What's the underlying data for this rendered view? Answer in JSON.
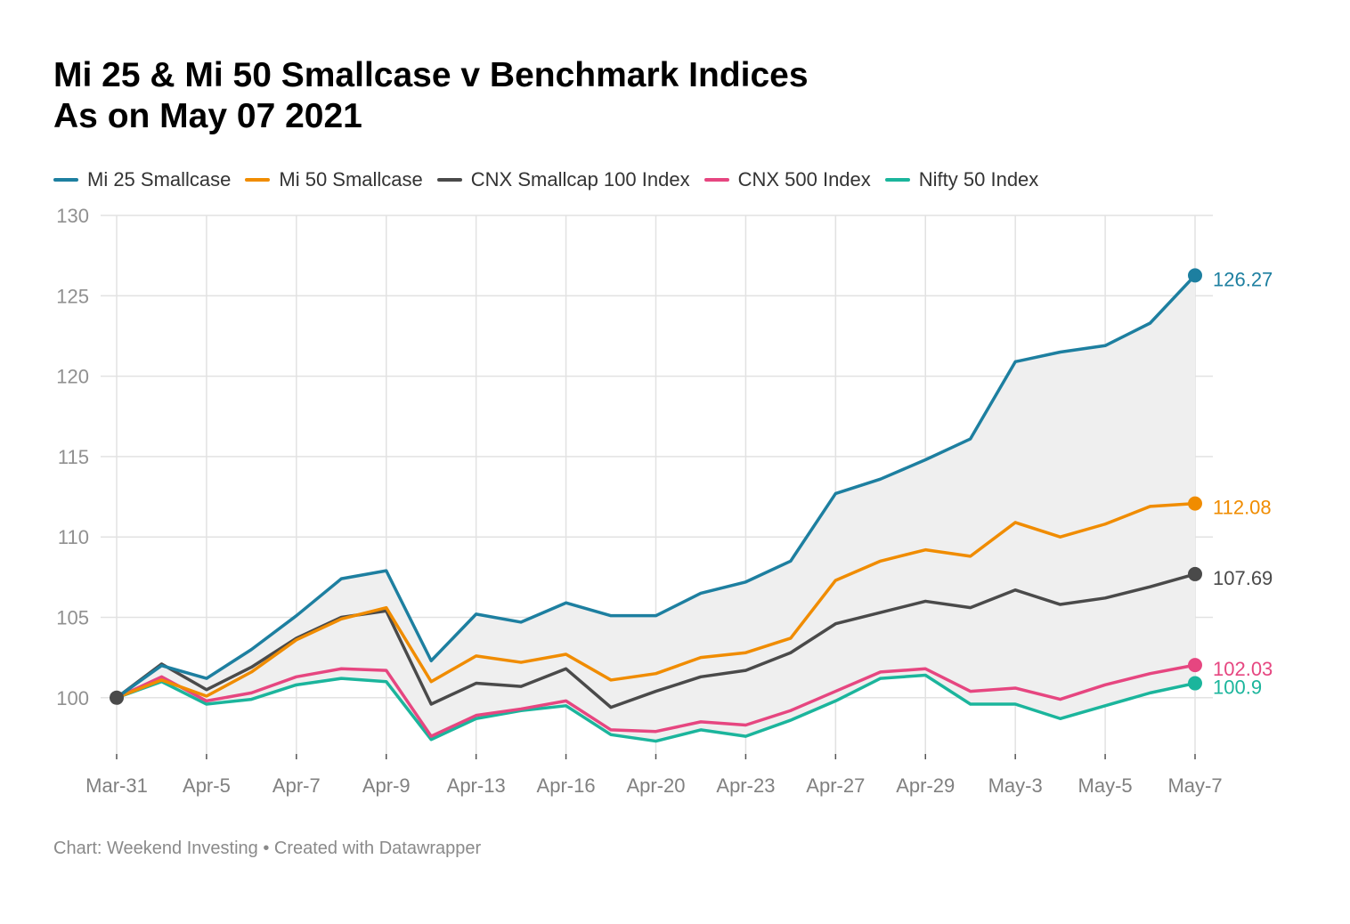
{
  "title": {
    "line1": "Mi 25 & Mi 50 Smallcase v Benchmark Indices",
    "line2": "As on May 07 2021"
  },
  "footer": "Chart: Weekend Investing • Created with Datawrapper",
  "chart_data": {
    "type": "line",
    "ylim": [
      96.5,
      130
    ],
    "yticks": [
      100,
      105,
      110,
      115,
      120,
      125,
      130
    ],
    "grid": true,
    "legend_position": "top",
    "x": [
      "Mar-31",
      "Apr-1",
      "Apr-5",
      "Apr-6",
      "Apr-7",
      "Apr-8",
      "Apr-9",
      "Apr-12",
      "Apr-13",
      "Apr-15",
      "Apr-16",
      "Apr-19",
      "Apr-20",
      "Apr-22",
      "Apr-23",
      "Apr-26",
      "Apr-27",
      "Apr-28",
      "Apr-29",
      "Apr-30",
      "May-3",
      "May-4",
      "May-5",
      "May-6",
      "May-7"
    ],
    "x_tick_labels": [
      {
        "index": 0,
        "label": "Mar-31"
      },
      {
        "index": 2,
        "label": "Apr-5"
      },
      {
        "index": 4,
        "label": "Apr-7"
      },
      {
        "index": 6,
        "label": "Apr-9"
      },
      {
        "index": 8,
        "label": "Apr-13"
      },
      {
        "index": 10,
        "label": "Apr-16"
      },
      {
        "index": 12,
        "label": "Apr-20"
      },
      {
        "index": 14,
        "label": "Apr-23"
      },
      {
        "index": 16,
        "label": "Apr-27"
      },
      {
        "index": 18,
        "label": "Apr-29"
      },
      {
        "index": 20,
        "label": "May-3"
      },
      {
        "index": 22,
        "label": "May-5"
      },
      {
        "index": 24,
        "label": "May-7"
      }
    ],
    "band": {
      "between": [
        "Mi 25 Smallcase",
        "Nifty 50 Index"
      ],
      "color": "#efefef"
    },
    "series": [
      {
        "name": "Mi 25 Smallcase",
        "color": "#1d7fa0",
        "end_label": "126.27",
        "values": [
          100,
          102.0,
          101.2,
          103.0,
          105.1,
          107.4,
          107.9,
          102.3,
          105.2,
          104.7,
          105.9,
          105.1,
          105.1,
          106.5,
          107.2,
          108.5,
          112.7,
          113.6,
          114.8,
          116.1,
          120.9,
          121.5,
          121.9,
          123.3,
          126.27
        ]
      },
      {
        "name": "Mi 50 Smallcase",
        "color": "#f08c00",
        "end_label": "112.08",
        "values": [
          100,
          101.1,
          100.1,
          101.6,
          103.6,
          104.9,
          105.6,
          101.0,
          102.6,
          102.2,
          102.7,
          101.1,
          101.5,
          102.5,
          102.8,
          103.7,
          107.3,
          108.5,
          109.2,
          108.8,
          110.9,
          110.0,
          110.8,
          111.9,
          112.08
        ]
      },
      {
        "name": "CNX Smallcap 100 Index",
        "color": "#4a4a4a",
        "end_label": "107.69",
        "values": [
          100,
          102.1,
          100.5,
          101.9,
          103.7,
          105.0,
          105.4,
          99.6,
          100.9,
          100.7,
          101.8,
          99.4,
          100.4,
          101.3,
          101.7,
          102.8,
          104.6,
          105.3,
          106.0,
          105.6,
          106.7,
          105.8,
          106.2,
          106.9,
          107.69
        ]
      },
      {
        "name": "CNX 500 Index",
        "color": "#e64680",
        "end_label": "102.03",
        "values": [
          100,
          101.3,
          99.8,
          100.3,
          101.3,
          101.8,
          101.7,
          97.6,
          98.9,
          99.3,
          99.8,
          98.0,
          97.9,
          98.5,
          98.3,
          99.2,
          100.4,
          101.6,
          101.8,
          100.4,
          100.6,
          99.9,
          100.8,
          101.5,
          102.03
        ]
      },
      {
        "name": "Nifty 50 Index",
        "color": "#1bb59c",
        "end_label": "100.9",
        "values": [
          100,
          101.0,
          99.6,
          99.9,
          100.8,
          101.2,
          101.0,
          97.4,
          98.7,
          99.2,
          99.5,
          97.7,
          97.3,
          98.0,
          97.6,
          98.6,
          99.8,
          101.2,
          101.4,
          99.6,
          99.6,
          98.7,
          99.5,
          100.3,
          100.9
        ]
      }
    ]
  }
}
